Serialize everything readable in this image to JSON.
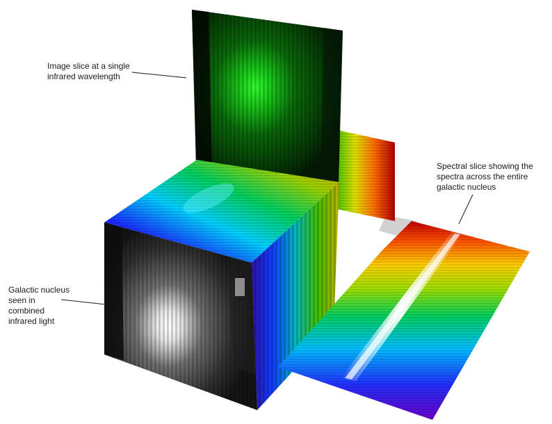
{
  "annotations": {
    "image_slice": [
      "Image slice at a single",
      "infrared wavelength"
    ],
    "spectral_slice": [
      "Spectral slice showing the",
      "spectra across the entire",
      "galactic nucleus"
    ],
    "galactic_nucleus": [
      "Galactic nucleus",
      "seen in",
      "combined",
      "infrared light"
    ]
  },
  "colors": {
    "infrared_slice": "#22e02a",
    "spectrum": [
      "#7a00c8",
      "#2030ff",
      "#00c8ff",
      "#00e060",
      "#a0e000",
      "#ffff00",
      "#ff8000",
      "#d00000"
    ],
    "nucleus_glow": "#ffffff",
    "label_text": "#1a1a1a"
  }
}
